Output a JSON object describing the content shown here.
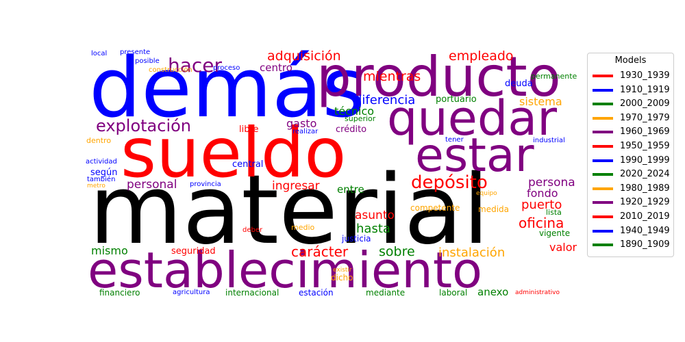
{
  "chart_data": {
    "type": "wordcloud",
    "legend": {
      "title": "Models",
      "placement": "right",
      "entries": [
        {
          "label": "1930_1939",
          "color": "#ff0000"
        },
        {
          "label": "1910_1919",
          "color": "#0000ff"
        },
        {
          "label": "2000_2009",
          "color": "#008000"
        },
        {
          "label": "1970_1979",
          "color": "#ffa500"
        },
        {
          "label": "1960_1969",
          "color": "#800080"
        },
        {
          "label": "1950_1959",
          "color": "#ff0000"
        },
        {
          "label": "1990_1999",
          "color": "#0000ff"
        },
        {
          "label": "2020_2024",
          "color": "#008000"
        },
        {
          "label": "1980_1989",
          "color": "#ffa500"
        },
        {
          "label": "1920_1929",
          "color": "#800080"
        },
        {
          "label": "2010_2019",
          "color": "#ff0000"
        },
        {
          "label": "1940_1949",
          "color": "#0000ff"
        },
        {
          "label": "1890_1909",
          "color": "#008000"
        }
      ]
    },
    "words": [
      {
        "text": "material",
        "color": "#000000"
      },
      {
        "text": "demás",
        "color": "#0000ff"
      },
      {
        "text": "producto",
        "color": "#800080"
      },
      {
        "text": "sueldo",
        "color": "#ff0000"
      },
      {
        "text": "quedar",
        "color": "#800080"
      },
      {
        "text": "establecimiento",
        "color": "#800080"
      },
      {
        "text": "estar",
        "color": "#800080"
      },
      {
        "text": "hacer",
        "color": "#800080"
      },
      {
        "text": "explotación",
        "color": "#800080"
      },
      {
        "text": "depósito",
        "color": "#ff0000"
      },
      {
        "text": "adquisición",
        "color": "#ff0000"
      },
      {
        "text": "mientras",
        "color": "#ff0000"
      },
      {
        "text": "empleado",
        "color": "#ff0000"
      },
      {
        "text": "oficina",
        "color": "#ff0000"
      },
      {
        "text": "carácter",
        "color": "#ff0000"
      },
      {
        "text": "instalación",
        "color": "#ffa500"
      },
      {
        "text": "diferencia",
        "color": "#0000ff"
      },
      {
        "text": "puerto",
        "color": "#ff0000"
      },
      {
        "text": "persona",
        "color": "#800080"
      },
      {
        "text": "personal",
        "color": "#800080"
      },
      {
        "text": "ingresar",
        "color": "#ff0000"
      },
      {
        "text": "sobre",
        "color": "#008000"
      },
      {
        "text": "hasta",
        "color": "#008000"
      },
      {
        "text": "asunto",
        "color": "#ff0000"
      },
      {
        "text": "sistema",
        "color": "#ffa500"
      },
      {
        "text": "centro",
        "color": "#800080"
      },
      {
        "text": "técnico",
        "color": "#008000"
      },
      {
        "text": "gasto",
        "color": "#800080"
      },
      {
        "text": "fondo",
        "color": "#800080"
      },
      {
        "text": "mismo",
        "color": "#008000"
      },
      {
        "text": "valor",
        "color": "#ff0000"
      },
      {
        "text": "anexo",
        "color": "#008000"
      },
      {
        "text": "entre",
        "color": "#008000"
      },
      {
        "text": "libre",
        "color": "#ff0000"
      },
      {
        "text": "deuda",
        "color": "#0000ff"
      },
      {
        "text": "portuario",
        "color": "#008000"
      },
      {
        "text": "crédito",
        "color": "#800080"
      },
      {
        "text": "seguridad",
        "color": "#ff0000"
      },
      {
        "text": "según",
        "color": "#0000ff"
      },
      {
        "text": "central",
        "color": "#0000ff"
      },
      {
        "text": "financiero",
        "color": "#008000"
      },
      {
        "text": "internacional",
        "color": "#008000"
      },
      {
        "text": "estación",
        "color": "#0000ff"
      },
      {
        "text": "mediante",
        "color": "#008000"
      },
      {
        "text": "laboral",
        "color": "#008000"
      },
      {
        "text": "vigente",
        "color": "#008000"
      },
      {
        "text": "justicia",
        "color": "#0000ff"
      },
      {
        "text": "competente",
        "color": "#ffa500"
      },
      {
        "text": "medida",
        "color": "#ffa500"
      },
      {
        "text": "superior",
        "color": "#008000"
      },
      {
        "text": "lista",
        "color": "#008000"
      },
      {
        "text": "permanente",
        "color": "#008000"
      },
      {
        "text": "dicho",
        "color": "#ffa500"
      },
      {
        "text": "dentro",
        "color": "#ffa500"
      },
      {
        "text": "provincia",
        "color": "#0000ff"
      },
      {
        "text": "agricultura",
        "color": "#0000ff"
      },
      {
        "text": "medio",
        "color": "#ffa500"
      },
      {
        "text": "industrial",
        "color": "#0000ff"
      },
      {
        "text": "local",
        "color": "#0000ff"
      },
      {
        "text": "presente",
        "color": "#0000ff"
      },
      {
        "text": "posible",
        "color": "#0000ff"
      },
      {
        "text": "construcción",
        "color": "#ffa500"
      },
      {
        "text": "proceso",
        "color": "#0000ff"
      },
      {
        "text": "actividad",
        "color": "#0000ff"
      },
      {
        "text": "también",
        "color": "#0000ff"
      },
      {
        "text": "metro",
        "color": "#ffa500"
      },
      {
        "text": "realizar",
        "color": "#0000ff"
      },
      {
        "text": "tener",
        "color": "#0000ff"
      },
      {
        "text": "deber",
        "color": "#ff0000"
      },
      {
        "text": "existir",
        "color": "#ffa500"
      },
      {
        "text": "equipo",
        "color": "#ffa500"
      },
      {
        "text": "administrativo",
        "color": "#ff0000"
      }
    ]
  }
}
